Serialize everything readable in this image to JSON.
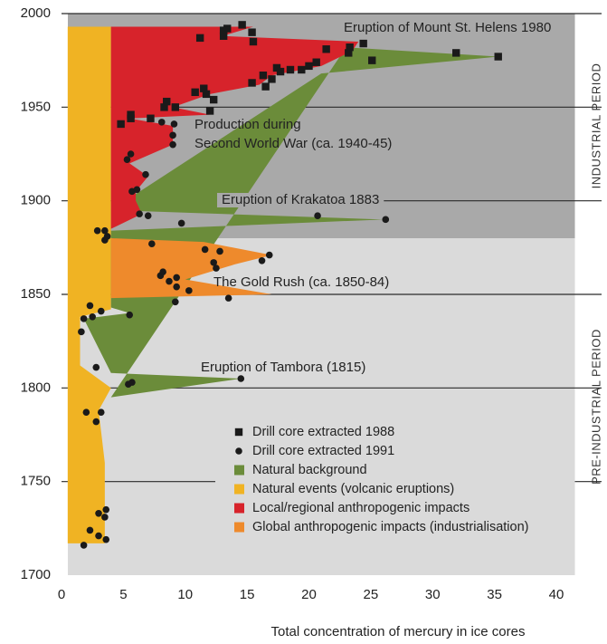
{
  "chart_data": {
    "type": "area-scatter",
    "x_label": "Total concentration of mercury in ice cores",
    "xlim": [
      0,
      41.5
    ],
    "xticks": [
      0,
      5,
      10,
      15,
      20,
      25,
      30,
      35,
      40
    ],
    "ylim": [
      1700,
      2000
    ],
    "yticks": [
      1700,
      1750,
      1800,
      1850,
      1900,
      1950,
      2000
    ],
    "grid": true,
    "periods": [
      {
        "label": "INDUSTRIAL PERIOD",
        "from": 1880,
        "to": 2000,
        "color": "#a9a9a9"
      },
      {
        "label": "PRE-INDUSTRIAL PERIOD",
        "from": 1700,
        "to": 1880,
        "color": "#dadada"
      }
    ],
    "regions": [
      {
        "name": "Natural events (volcanic eruptions)",
        "color": "#f0b323",
        "years": [
          1717,
          1717,
          1760,
          1788,
          1800,
          1812,
          1838,
          1842,
          1993,
          1993
        ],
        "values": [
          0.5,
          3.5,
          3.5,
          3.0,
          4.0,
          1.5,
          1.5,
          4.0,
          4.0,
          0.5
        ]
      },
      {
        "name": "Natural background",
        "color": "#6b8c3a",
        "years": [
          1795,
          1805,
          1808,
          1837,
          1840,
          1843,
          1884,
          1890,
          1895,
          1968,
          1977,
          1982
        ],
        "values": [
          4.0,
          14.5,
          4.0,
          1.8,
          5.5,
          4.0,
          4.0,
          26.0,
          4.0,
          21.0,
          35.3,
          23.0
        ]
      },
      {
        "name": "Global anthropogenic impacts (industrialisation)",
        "color": "#ee8a2c",
        "years": [
          1848,
          1850,
          1858,
          1866,
          1871,
          1878,
          1880
        ],
        "values": [
          4.0,
          17.0,
          10.0,
          14.0,
          17.0,
          11.5,
          4.0
        ]
      },
      {
        "name": "Local/regional anthropogenic impacts",
        "color": "#d7232b",
        "years": [
          1885,
          1893,
          1900,
          1905,
          1913,
          1920,
          1930,
          1940,
          1944,
          1946,
          1950,
          1957,
          1962,
          1967,
          1972,
          1980,
          1985,
          1988,
          1993,
          1993
        ],
        "values": [
          4.0,
          6.5,
          6.0,
          6.0,
          7.0,
          5.5,
          9.0,
          9.0,
          5.5,
          12.0,
          9.0,
          12.0,
          16.0,
          17.0,
          21.0,
          23.5,
          24.0,
          13.0,
          15.5,
          4.0
        ]
      }
    ],
    "series": [
      {
        "name": "Drill core extracted 1988",
        "marker": "square",
        "color": "#1a1a1a",
        "years": [
          1941,
          1944,
          1944,
          1946,
          1948,
          1950,
          1950,
          1953,
          1954,
          1957,
          1958,
          1960,
          1961,
          1963,
          1965,
          1967,
          1969,
          1970,
          1970,
          1971,
          1972,
          1974,
          1975,
          1977,
          1979,
          1979,
          1981,
          1982,
          1984,
          1985,
          1987,
          1988,
          1990,
          1991,
          1992,
          1994
        ],
        "values": [
          4.8,
          5.6,
          7.2,
          5.6,
          12.0,
          8.3,
          9.2,
          8.5,
          12.3,
          11.7,
          10.8,
          11.5,
          16.5,
          15.4,
          17.0,
          16.3,
          17.7,
          18.5,
          19.4,
          17.4,
          20.0,
          20.6,
          25.1,
          35.3,
          31.9,
          23.2,
          21.4,
          23.3,
          24.4,
          15.5,
          11.2,
          13.1,
          15.4,
          13.1,
          13.4,
          14.6
        ]
      },
      {
        "name": "Drill core extracted 1991",
        "marker": "circle",
        "color": "#1a1a1a",
        "years": [
          1716,
          1719,
          1721,
          1724,
          1731,
          1733,
          1735,
          1782,
          1787,
          1787,
          1802,
          1803,
          1805,
          1811,
          1830,
          1837,
          1838,
          1839,
          1841,
          1844,
          1846,
          1848,
          1852,
          1854,
          1857,
          1859,
          1860,
          1862,
          1864,
          1867,
          1868,
          1871,
          1873,
          1874,
          1877,
          1879,
          1881,
          1884,
          1884,
          1888,
          1890,
          1892,
          1892,
          1893,
          1905,
          1906,
          1914,
          1922,
          1925,
          1930,
          1935,
          1941,
          1942
        ],
        "values": [
          1.8,
          3.6,
          3.0,
          2.3,
          3.5,
          3.0,
          3.6,
          2.8,
          3.2,
          2.0,
          5.4,
          5.7,
          14.5,
          2.8,
          1.6,
          1.8,
          2.5,
          5.5,
          3.2,
          2.3,
          9.2,
          13.5,
          10.3,
          9.3,
          8.7,
          9.3,
          8.0,
          8.2,
          12.5,
          12.3,
          16.2,
          16.8,
          12.8,
          11.6,
          7.3,
          3.5,
          3.7,
          2.9,
          3.5,
          9.7,
          26.2,
          20.7,
          7.0,
          6.3,
          5.7,
          6.1,
          6.8,
          5.3,
          5.6,
          9.0,
          9.0,
          9.1,
          8.1
        ]
      }
    ],
    "annotations": [
      "Eruption of Mount St. Helens 1980",
      "Production during",
      "Second World War (ca. 1940-45)",
      "Eruption of Krakatoa 1883",
      "The Gold Rush (ca. 1850-84)",
      "Eruption of Tambora (1815)"
    ]
  }
}
